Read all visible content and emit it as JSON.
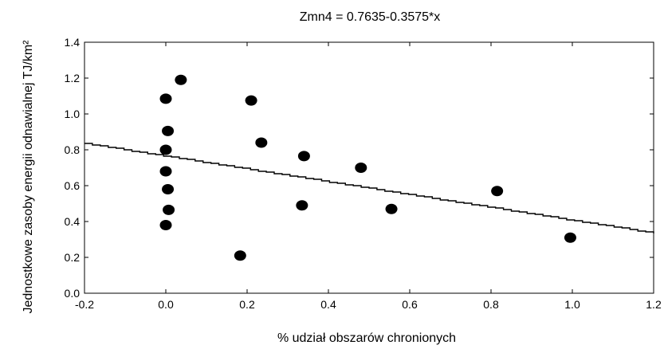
{
  "chart_data": {
    "type": "scatter",
    "title": "Zmn4 = 0.7635-0.3575*x",
    "xlabel": "% udział obszarów chronionych",
    "ylabel": "Jednostkowe zasoby energii odnawialnej TJ/km²",
    "xlim": [
      -0.2,
      1.2
    ],
    "ylim": [
      0.0,
      1.4
    ],
    "xticks": [
      "-0.2",
      "0.0",
      "0.2",
      "0.4",
      "0.6",
      "0.8",
      "1.0",
      "1.2"
    ],
    "yticks": [
      "0.0",
      "0.2",
      "0.4",
      "0.6",
      "0.8",
      "1.0",
      "1.2",
      "1.4"
    ],
    "grid": false,
    "regression": {
      "intercept": 0.7635,
      "slope": -0.3575
    },
    "points": [
      {
        "x": 0.0,
        "y": 1.085
      },
      {
        "x": 0.005,
        "y": 0.905
      },
      {
        "x": 0.0,
        "y": 0.8
      },
      {
        "x": 0.0,
        "y": 0.68
      },
      {
        "x": 0.005,
        "y": 0.58
      },
      {
        "x": 0.007,
        "y": 0.465
      },
      {
        "x": 0.0,
        "y": 0.38
      },
      {
        "x": 0.037,
        "y": 1.19
      },
      {
        "x": 0.21,
        "y": 1.075
      },
      {
        "x": 0.235,
        "y": 0.84
      },
      {
        "x": 0.183,
        "y": 0.21
      },
      {
        "x": 0.335,
        "y": 0.49
      },
      {
        "x": 0.34,
        "y": 0.765
      },
      {
        "x": 0.48,
        "y": 0.7
      },
      {
        "x": 0.555,
        "y": 0.47
      },
      {
        "x": 0.815,
        "y": 0.57
      },
      {
        "x": 0.995,
        "y": 0.31
      }
    ]
  }
}
